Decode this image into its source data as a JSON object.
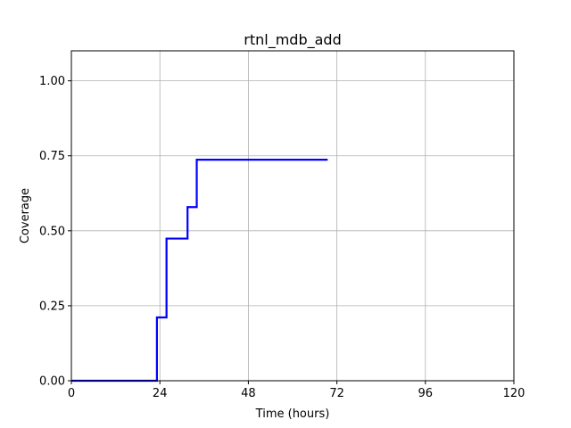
{
  "chart_data": {
    "type": "line",
    "title": "rtnl_mdb_add",
    "xlabel": "Time (hours)",
    "ylabel": "Coverage",
    "xlim": [
      0,
      120
    ],
    "ylim": [
      0,
      1.1
    ],
    "xticks": [
      0,
      24,
      48,
      72,
      96,
      120
    ],
    "yticks": [
      0.0,
      0.25,
      0.5,
      0.75,
      1.0
    ],
    "xtick_labels": [
      "0",
      "24",
      "48",
      "72",
      "96",
      "120"
    ],
    "ytick_labels": [
      "0.00",
      "0.25",
      "0.50",
      "0.75",
      "1.00"
    ],
    "grid": true,
    "line_style": "step",
    "series": [
      {
        "color": "#0000ff",
        "x": [
          0,
          23.2,
          23.2,
          25.8,
          25.8,
          31.5,
          31.5,
          34.0,
          34.0,
          69.5
        ],
        "y": [
          0,
          0,
          0.211,
          0.211,
          0.474,
          0.474,
          0.579,
          0.579,
          0.737,
          0.737
        ]
      }
    ]
  }
}
